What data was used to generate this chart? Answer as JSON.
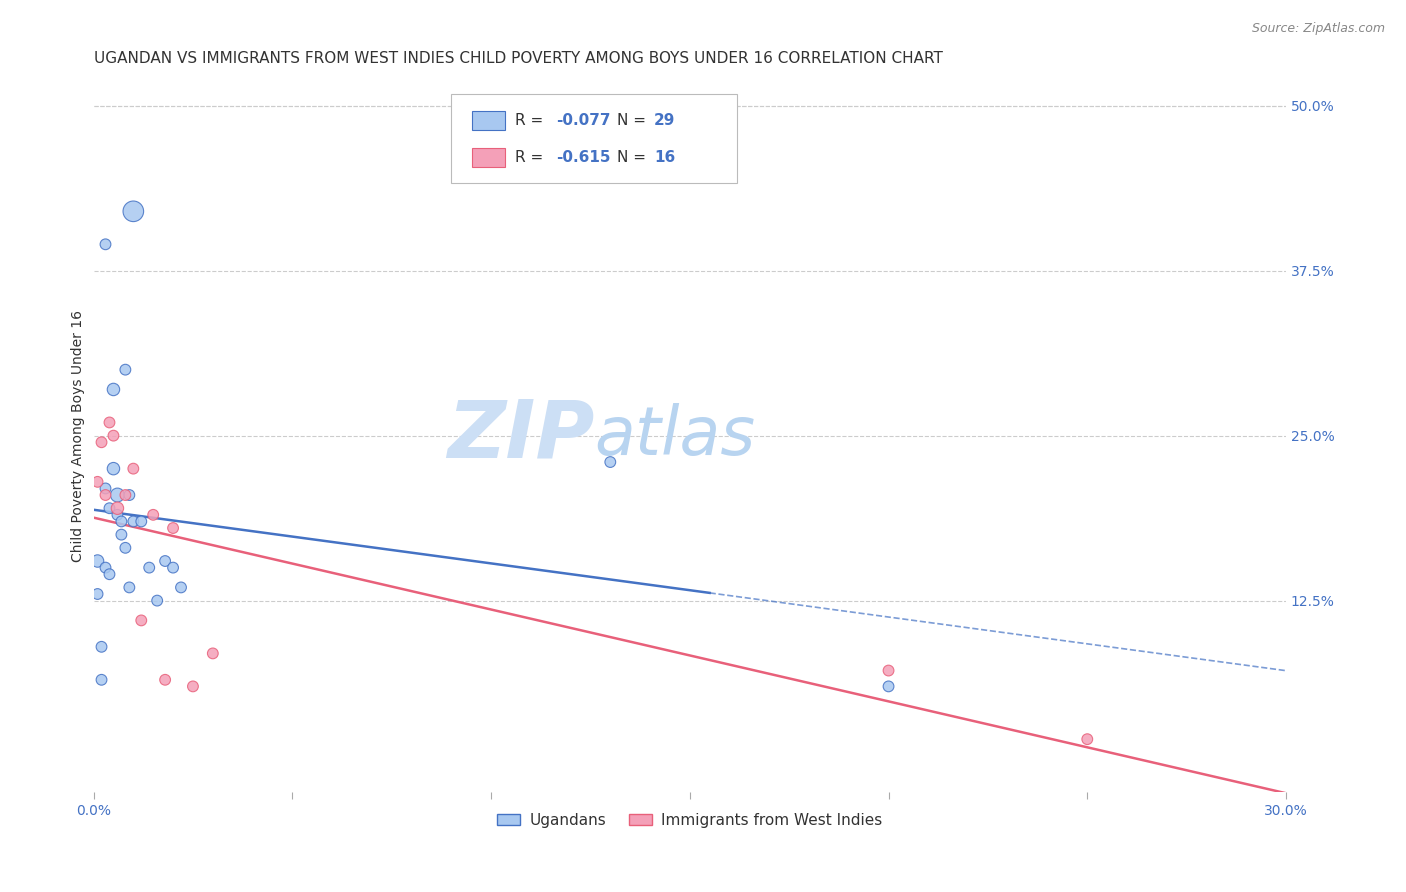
{
  "title": "UGANDAN VS IMMIGRANTS FROM WEST INDIES CHILD POVERTY AMONG BOYS UNDER 16 CORRELATION CHART",
  "source": "Source: ZipAtlas.com",
  "ylabel": "Child Poverty Among Boys Under 16",
  "xlim": [
    0.0,
    0.3
  ],
  "ylim": [
    -0.02,
    0.52
  ],
  "xtick_vals": [
    0.0,
    0.05,
    0.1,
    0.15,
    0.2,
    0.25,
    0.3
  ],
  "xtick_labels": [
    "0.0%",
    "",
    "",
    "",
    "",
    "",
    "30.0%"
  ],
  "ytick_values_right": [
    0.5,
    0.375,
    0.25,
    0.125
  ],
  "ytick_labels_right": [
    "50.0%",
    "37.5%",
    "25.0%",
    "12.5%"
  ],
  "legend_label1_R": "-0.077",
  "legend_label1_N": "29",
  "legend_label2_R": "-0.615",
  "legend_label2_N": "16",
  "blue_color": "#a8c8f0",
  "blue_line_color": "#4472c4",
  "pink_color": "#f4a0b8",
  "pink_line_color": "#e8607a",
  "watermark_zip": "ZIP",
  "watermark_atlas": "atlas",
  "watermark_color_zip": "#c8ddf0",
  "watermark_color_atlas": "#b0ccec",
  "bottom_legend_labels": [
    "Ugandans",
    "Immigrants from West Indies"
  ],
  "ugandan_x": [
    0.001,
    0.002,
    0.003,
    0.004,
    0.005,
    0.006,
    0.007,
    0.008,
    0.009,
    0.01,
    0.012,
    0.014,
    0.016,
    0.018,
    0.02,
    0.022,
    0.003,
    0.005,
    0.008,
    0.01,
    0.002,
    0.001,
    0.003,
    0.004,
    0.006,
    0.007,
    0.009,
    0.13,
    0.2
  ],
  "ugandan_y": [
    0.155,
    0.09,
    0.21,
    0.195,
    0.225,
    0.205,
    0.175,
    0.165,
    0.205,
    0.185,
    0.185,
    0.15,
    0.125,
    0.155,
    0.15,
    0.135,
    0.395,
    0.285,
    0.3,
    0.42,
    0.065,
    0.13,
    0.15,
    0.145,
    0.19,
    0.185,
    0.135,
    0.23,
    0.06
  ],
  "ugandan_sizes": [
    80,
    60,
    60,
    60,
    80,
    100,
    60,
    60,
    60,
    60,
    60,
    60,
    60,
    60,
    60,
    60,
    60,
    80,
    60,
    220,
    60,
    60,
    60,
    60,
    60,
    60,
    60,
    60,
    60
  ],
  "westindies_x": [
    0.001,
    0.002,
    0.003,
    0.004,
    0.005,
    0.006,
    0.008,
    0.01,
    0.012,
    0.015,
    0.018,
    0.02,
    0.025,
    0.2,
    0.25,
    0.03
  ],
  "westindies_y": [
    0.215,
    0.245,
    0.205,
    0.26,
    0.25,
    0.195,
    0.205,
    0.225,
    0.11,
    0.19,
    0.065,
    0.18,
    0.06,
    0.072,
    0.02,
    0.085
  ],
  "westindies_sizes": [
    60,
    60,
    60,
    60,
    60,
    80,
    60,
    60,
    60,
    60,
    60,
    60,
    60,
    60,
    60,
    60
  ],
  "grid_color": "#cccccc",
  "background_color": "#ffffff",
  "title_fontsize": 11,
  "axis_label_fontsize": 10,
  "tick_fontsize": 10,
  "blue_solid_xend": 0.155,
  "blue_dashed_xstart": 0.155,
  "blue_dashed_xend": 0.3
}
